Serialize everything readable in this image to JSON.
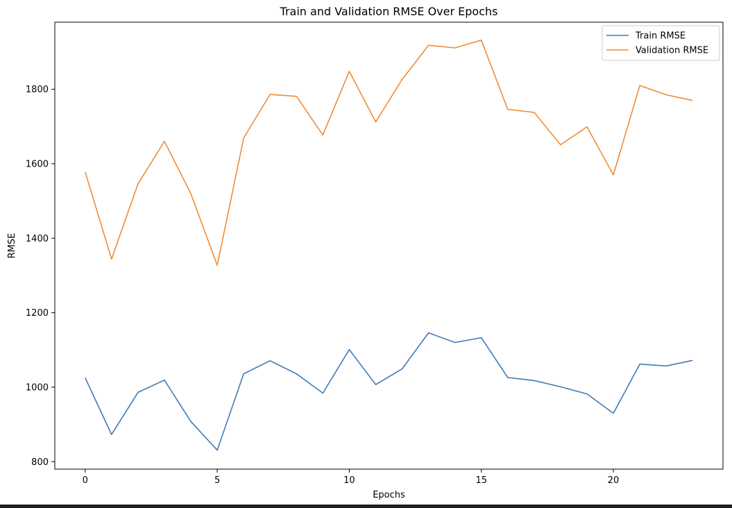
{
  "chart_data": {
    "type": "line",
    "title": "Train and Validation RMSE Over Epochs",
    "xlabel": "Epochs",
    "ylabel": "RMSE",
    "xlim": [
      -1.15,
      24.15
    ],
    "ylim": [
      780,
      1980
    ],
    "xticks": [
      0,
      5,
      10,
      15,
      20
    ],
    "yticks": [
      800,
      1000,
      1200,
      1400,
      1600,
      1800
    ],
    "grid": false,
    "legend_position": "top-right",
    "x": [
      0,
      1,
      2,
      3,
      4,
      5,
      6,
      7,
      8,
      9,
      10,
      11,
      12,
      13,
      14,
      15,
      16,
      17,
      18,
      19,
      20,
      21,
      22,
      23
    ],
    "series": [
      {
        "name": "Train RMSE",
        "color": "#3d7ab8",
        "values": [
          1025,
          873,
          986,
          1019,
          908,
          831,
          1036,
          1071,
          1036,
          984,
          1101,
          1007,
          1049,
          1146,
          1120,
          1133,
          1026,
          1018,
          1001,
          982,
          930,
          1062,
          1057,
          1072
        ]
      },
      {
        "name": "Validation RMSE",
        "color": "#ef8c36",
        "values": [
          1578,
          1344,
          1546,
          1660,
          1520,
          1327,
          1669,
          1786,
          1781,
          1677,
          1848,
          1712,
          1826,
          1918,
          1911,
          1932,
          1746,
          1738,
          1651,
          1699,
          1570,
          1810,
          1785,
          1770
        ]
      }
    ]
  }
}
